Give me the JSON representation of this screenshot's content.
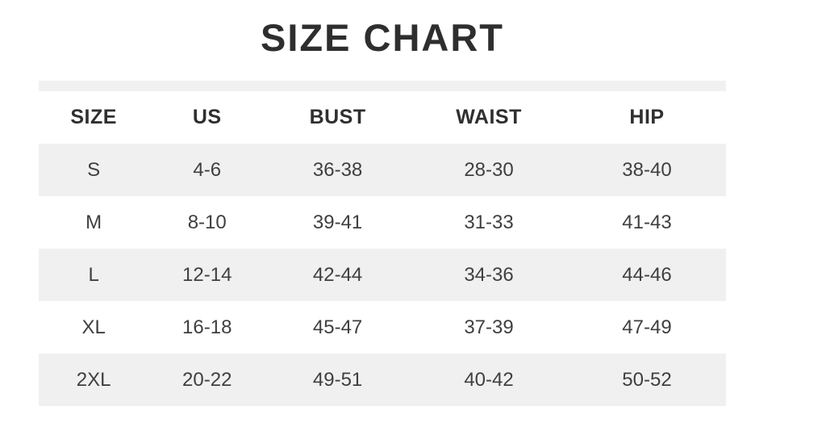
{
  "title": "SIZE CHART",
  "colors": {
    "stripe_row": "#f0f0f0",
    "top_bar": "#f1f1f2",
    "title_text": "#2e2e2e",
    "header_text": "#2f2f2f",
    "cell_text": "#3f3f3f",
    "background": "#ffffff"
  },
  "chart_data": {
    "type": "table",
    "title": "SIZE CHART",
    "columns": [
      "SIZE",
      "US",
      "BUST",
      "WAIST",
      "HIP"
    ],
    "rows": [
      [
        "S",
        "4-6",
        "36-38",
        "28-30",
        "38-40"
      ],
      [
        "M",
        "8-10",
        "39-41",
        "31-33",
        "41-43"
      ],
      [
        "L",
        "12-14",
        "42-44",
        "34-36",
        "44-46"
      ],
      [
        "XL",
        "16-18",
        "45-47",
        "37-39",
        "47-49"
      ],
      [
        "2XL",
        "20-22",
        "49-51",
        "40-42",
        "50-52"
      ]
    ],
    "layout_hints": {
      "striped": "odd rows light gray, even rows white",
      "alignment": "all cells center-aligned",
      "column_width_percents": [
        16,
        17,
        21,
        23,
        23
      ],
      "grid": false
    }
  }
}
